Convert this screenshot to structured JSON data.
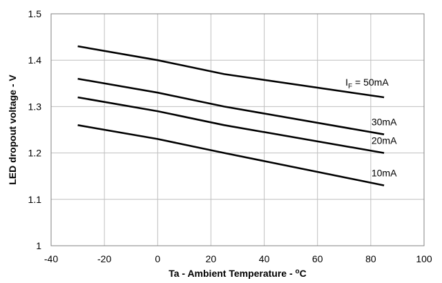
{
  "chart_data": {
    "type": "line",
    "xlabel": "Ta - Ambient Temperature - ",
    "xlabel_unit_sup": "o",
    "xlabel_unit": "C",
    "ylabel": "LED dropout voltage - V",
    "xlim": [
      -40,
      100
    ],
    "ylim": [
      1,
      1.5
    ],
    "xticks": [
      -40,
      -20,
      0,
      20,
      40,
      60,
      80,
      100
    ],
    "yticks": [
      1,
      1.1,
      1.2,
      1.3,
      1.4,
      1.5
    ],
    "xtick_labels": [
      "-40",
      "-20",
      "0",
      "20",
      "40",
      "60",
      "80",
      "100"
    ],
    "ytick_labels": [
      "1",
      "1.1",
      "1.2",
      "1.3",
      "1.4",
      "1.5"
    ],
    "grid": true,
    "x": [
      -30,
      0,
      25,
      85
    ],
    "series": [
      {
        "name": "50mA",
        "label_prefix": "I",
        "label_sub": "F",
        "label_text": " = 50mA",
        "values": [
          1.43,
          1.4,
          1.37,
          1.32
        ]
      },
      {
        "name": "30mA",
        "label_text": "30mA",
        "values": [
          1.36,
          1.33,
          1.3,
          1.24
        ]
      },
      {
        "name": "20mA",
        "label_text": "20mA",
        "values": [
          1.32,
          1.29,
          1.26,
          1.2
        ]
      },
      {
        "name": "10mA",
        "label_text": "10mA",
        "values": [
          1.26,
          1.23,
          1.2,
          1.13
        ]
      }
    ]
  }
}
